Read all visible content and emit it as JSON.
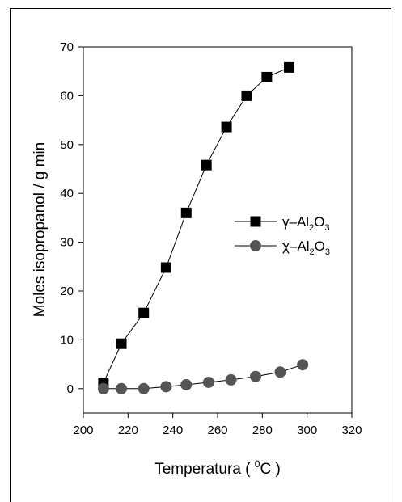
{
  "chart_data": {
    "type": "line",
    "title": "",
    "xlabel_parts": {
      "main": "Temperatura ( ",
      "sup": "0",
      "unit": "C )"
    },
    "ylabel": "Moles isopropanol / g min",
    "xlim": [
      200,
      320
    ],
    "ylim": [
      -5,
      70
    ],
    "x_ticks": [
      200,
      220,
      240,
      260,
      280,
      300,
      320
    ],
    "y_ticks": [
      0,
      10,
      20,
      30,
      40,
      50,
      60,
      70
    ],
    "legend_placement": "center-right",
    "series": [
      {
        "name": "γ–Al2O3",
        "legend": {
          "pre": "γ–Al",
          "sub1": "2",
          "mid": "O",
          "sub2": "3"
        },
        "marker": "square",
        "color": "#000000",
        "x": [
          209,
          217,
          227,
          237,
          246,
          255,
          264,
          273,
          282,
          292
        ],
        "y": [
          1.2,
          9.2,
          15.5,
          24.8,
          36.0,
          45.8,
          53.6,
          60.0,
          63.8,
          65.8
        ]
      },
      {
        "name": "χ–Al2O3",
        "legend": {
          "pre": "χ–Al",
          "sub1": "2",
          "mid": "O",
          "sub2": "3"
        },
        "marker": "circle",
        "color": "#555555",
        "x": [
          209,
          217,
          227,
          237,
          246,
          256,
          266,
          277,
          288,
          298
        ],
        "y": [
          0.0,
          0.0,
          0.0,
          0.4,
          0.8,
          1.3,
          1.8,
          2.5,
          3.4,
          4.9
        ]
      }
    ]
  }
}
